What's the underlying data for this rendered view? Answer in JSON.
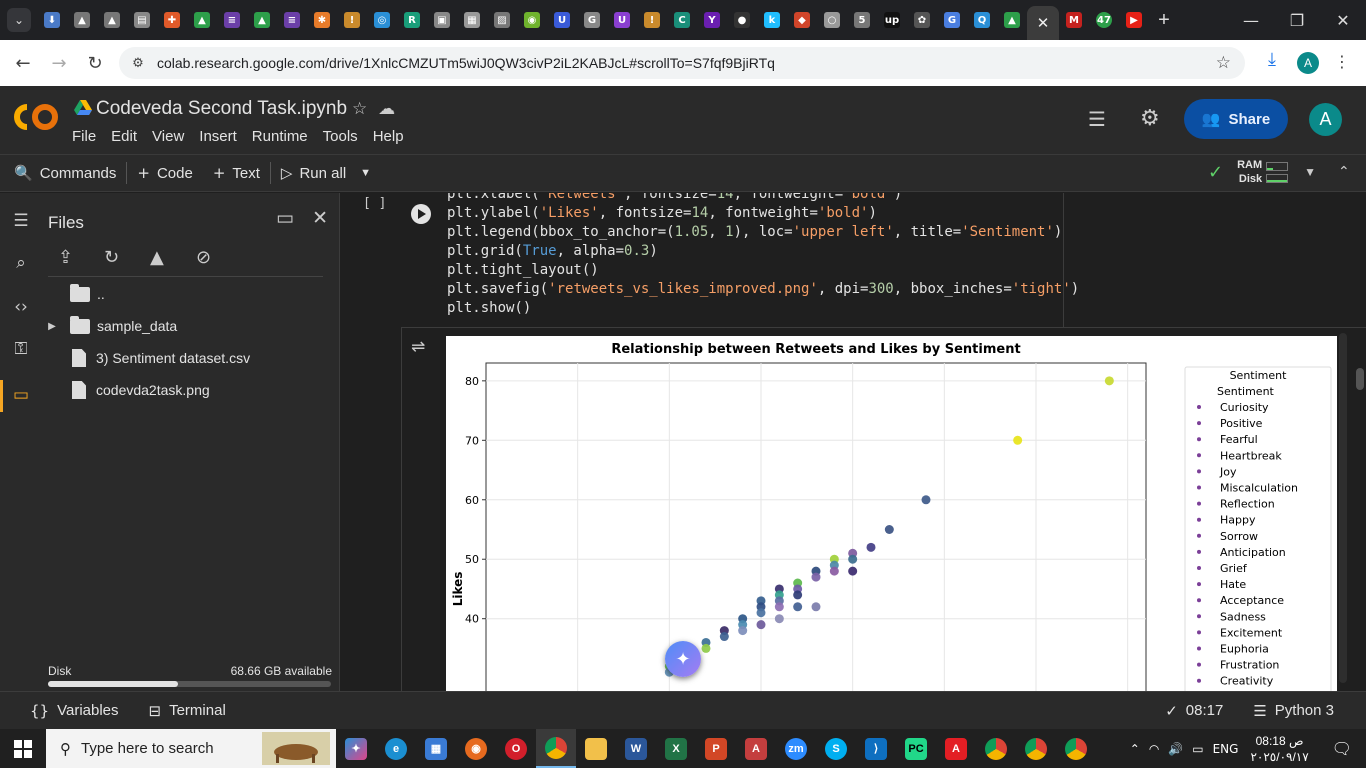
{
  "browser": {
    "tabs_count_badge": "47",
    "url": "colab.research.google.com/drive/1XnlcCMZUTm5wiJ0QW3civP2iL2KABJcL#scrollTo=S7fqf9BjiRTq",
    "profile_initial": "A"
  },
  "colab": {
    "notebook_title": "Codeveda Second Task.ipynb",
    "menu": [
      "File",
      "Edit",
      "View",
      "Insert",
      "Runtime",
      "Tools",
      "Help"
    ],
    "share_label": "Share",
    "avatar_initial": "A",
    "toolbar": {
      "commands": "Commands",
      "code": "Code",
      "text": "Text",
      "run_all": "Run all"
    },
    "resources": {
      "ram": "RAM",
      "disk": "Disk"
    }
  },
  "files_panel": {
    "title": "Files",
    "items": [
      {
        "name": "..",
        "type": "folder"
      },
      {
        "name": "sample_data",
        "type": "folder"
      },
      {
        "name": "3) Sentiment dataset.csv",
        "type": "file"
      },
      {
        "name": "codevda2task.png",
        "type": "file"
      }
    ],
    "disk_label": "Disk",
    "disk_available": "68.66 GB available",
    "disk_used_fraction": 0.46
  },
  "cell": {
    "exec_count": "[ ]",
    "code_lines": [
      "plt.xlabel('Retweets', fontsize=14, fontweight='bold')",
      "plt.ylabel('Likes', fontsize=14, fontweight='bold')",
      "plt.legend(bbox_to_anchor=(1.05, 1), loc='upper left', title='Sentiment')",
      "plt.grid(True, alpha=0.3)",
      "plt.tight_layout()",
      "plt.savefig('retweets_vs_likes_improved.png', dpi=300, bbox_inches='tight')",
      "plt.show()"
    ]
  },
  "chart_data": {
    "type": "scatter",
    "title": "Relationship between Retweets and Likes by Sentiment",
    "ylabel": "Likes",
    "xlabel": "",
    "ylim_visible": [
      27,
      83
    ],
    "yticks": [
      40,
      50,
      60,
      70,
      80
    ],
    "grid": true,
    "legend_placement": "right-outside",
    "legend_title": "Sentiment",
    "legend_subtitle": "Sentiment",
    "legend_entries": [
      "Curiosity",
      "Positive",
      "Fearful",
      "Heartbreak",
      "Joy",
      "Miscalculation",
      "Reflection",
      "Happy",
      "Sorrow",
      "Anticipation",
      "Grief",
      "Hate",
      "Acceptance",
      "Sadness",
      "Excitement",
      "Euphoria",
      "Frustration",
      "Creativity"
    ],
    "points": [
      {
        "x": 40,
        "y": 80,
        "color": "#c8d930"
      },
      {
        "x": 35,
        "y": 70,
        "color": "#e8e419"
      },
      {
        "x": 30,
        "y": 60,
        "color": "#3e5a8a"
      },
      {
        "x": 28,
        "y": 55,
        "color": "#3b5283"
      },
      {
        "x": 27,
        "y": 52,
        "color": "#433e85"
      },
      {
        "x": 26,
        "y": 51,
        "color": "#7e5a9e"
      },
      {
        "x": 26,
        "y": 50,
        "color": "#3c6e8f"
      },
      {
        "x": 26,
        "y": 48,
        "color": "#3b2a6f"
      },
      {
        "x": 25,
        "y": 50,
        "color": "#a1d03a"
      },
      {
        "x": 25,
        "y": 49,
        "color": "#4c88a7"
      },
      {
        "x": 25,
        "y": 48,
        "color": "#8a5ba2"
      },
      {
        "x": 24,
        "y": 48,
        "color": "#2c4a7c"
      },
      {
        "x": 24,
        "y": 47,
        "color": "#7a61a6"
      },
      {
        "x": 23,
        "y": 46,
        "color": "#5cb84d"
      },
      {
        "x": 23,
        "y": 45,
        "color": "#6c5aa6"
      },
      {
        "x": 23,
        "y": 44,
        "color": "#2f3c76"
      },
      {
        "x": 23,
        "y": 42,
        "color": "#425f92"
      },
      {
        "x": 22,
        "y": 45,
        "color": "#382f6e"
      },
      {
        "x": 22,
        "y": 44,
        "color": "#34a18e"
      },
      {
        "x": 22,
        "y": 43,
        "color": "#5a6ea3"
      },
      {
        "x": 22,
        "y": 42,
        "color": "#8d6fb3"
      },
      {
        "x": 22,
        "y": 40,
        "color": "#8a8ab4"
      },
      {
        "x": 24,
        "y": 42,
        "color": "#7b7cab"
      },
      {
        "x": 21,
        "y": 43,
        "color": "#355e8e"
      },
      {
        "x": 21,
        "y": 42,
        "color": "#2f4d83"
      },
      {
        "x": 21,
        "y": 41,
        "color": "#4a72a1"
      },
      {
        "x": 21,
        "y": 39,
        "color": "#6c5a9b"
      },
      {
        "x": 20,
        "y": 40,
        "color": "#2c5788"
      },
      {
        "x": 20,
        "y": 39,
        "color": "#4b8bb1"
      },
      {
        "x": 20,
        "y": 38,
        "color": "#7d8ebb"
      },
      {
        "x": 19,
        "y": 38,
        "color": "#3a2a66"
      },
      {
        "x": 19,
        "y": 37,
        "color": "#3d5f90"
      },
      {
        "x": 18,
        "y": 36,
        "color": "#3b6f95"
      },
      {
        "x": 18,
        "y": 35,
        "color": "#8fcb4a"
      },
      {
        "x": 17,
        "y": 34,
        "color": "#2e4f7f"
      },
      {
        "x": 17,
        "y": 33,
        "color": "#6d86b2"
      },
      {
        "x": 16,
        "y": 32,
        "color": "#67c25a"
      },
      {
        "x": 16,
        "y": 31,
        "color": "#5f8fb6"
      }
    ]
  },
  "statusbar": {
    "variables": "Variables",
    "terminal": "Terminal",
    "time": "08:17",
    "runtime": "Python 3"
  },
  "taskbar": {
    "search_placeholder": "Type here to search",
    "lang": "ENG",
    "clock_time": "08:18 ص",
    "clock_date": "٢٠٢٥/٠٩/١٧"
  }
}
